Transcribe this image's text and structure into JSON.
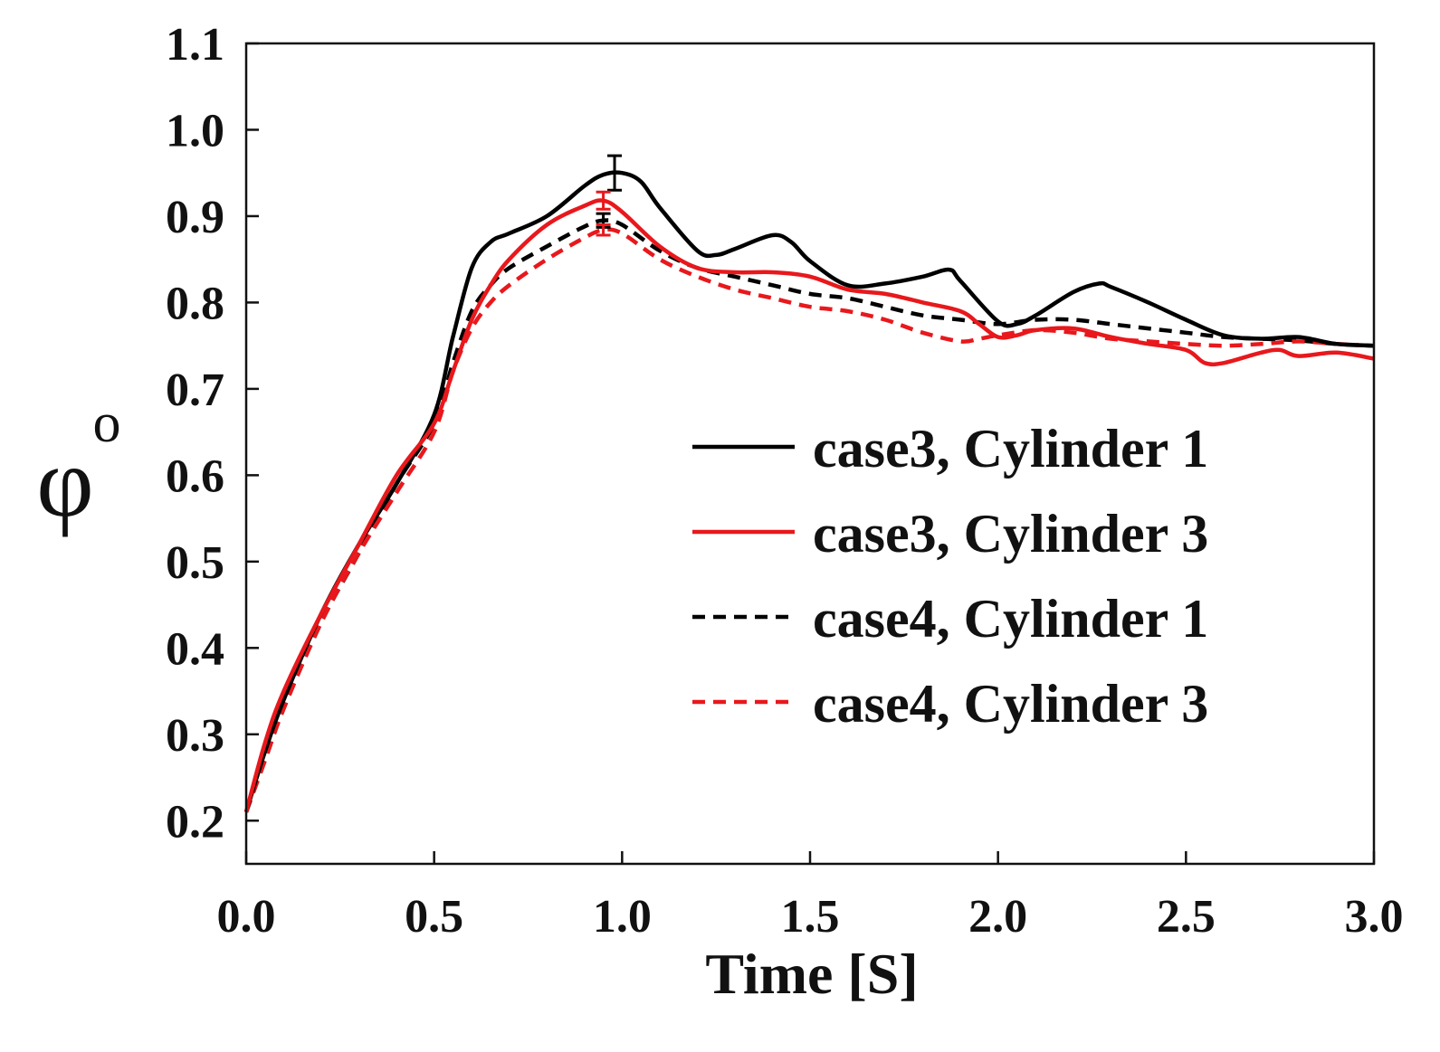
{
  "chart_data": {
    "type": "line",
    "title": "",
    "xlabel": "Time [S]",
    "ylabel_symbol": "φ",
    "ylabel_subscript": "o",
    "xlim": [
      0.0,
      3.0
    ],
    "ylim": [
      0.15,
      1.1
    ],
    "xticks": [
      0.0,
      0.5,
      1.0,
      1.5,
      2.0,
      2.5,
      3.0
    ],
    "xtick_labels": [
      "0.0",
      "0.5",
      "1.0",
      "1.5",
      "2.0",
      "2.5",
      "3.0"
    ],
    "yticks": [
      0.2,
      0.3,
      0.4,
      0.5,
      0.6,
      0.7,
      0.8,
      0.9,
      1.0,
      1.1
    ],
    "ytick_labels": [
      "0.2",
      "0.3",
      "0.4",
      "0.5",
      "0.6",
      "0.7",
      "0.8",
      "0.9",
      "1.0",
      "1.1"
    ],
    "legend_position": "right",
    "series": [
      {
        "name": "case3, Cylinder 1",
        "color": "#000000",
        "dash": "solid",
        "x": [
          0.0,
          0.05,
          0.1,
          0.2,
          0.3,
          0.4,
          0.5,
          0.55,
          0.6,
          0.65,
          0.7,
          0.8,
          0.9,
          0.95,
          1.0,
          1.05,
          1.1,
          1.2,
          1.25,
          1.3,
          1.4,
          1.45,
          1.5,
          1.6,
          1.7,
          1.8,
          1.87,
          1.9,
          2.0,
          2.05,
          2.1,
          2.2,
          2.27,
          2.3,
          2.4,
          2.5,
          2.6,
          2.7,
          2.8,
          2.9,
          3.0
        ],
        "y": [
          0.21,
          0.28,
          0.34,
          0.44,
          0.52,
          0.59,
          0.67,
          0.76,
          0.84,
          0.87,
          0.88,
          0.9,
          0.935,
          0.948,
          0.95,
          0.94,
          0.91,
          0.86,
          0.855,
          0.862,
          0.878,
          0.87,
          0.848,
          0.82,
          0.822,
          0.83,
          0.838,
          0.825,
          0.778,
          0.775,
          0.785,
          0.812,
          0.822,
          0.818,
          0.8,
          0.78,
          0.762,
          0.758,
          0.76,
          0.752,
          0.75
        ]
      },
      {
        "name": "case3, Cylinder 3",
        "color": "#e8181c",
        "dash": "solid",
        "x": [
          0.0,
          0.05,
          0.1,
          0.2,
          0.3,
          0.4,
          0.5,
          0.55,
          0.6,
          0.65,
          0.7,
          0.8,
          0.9,
          0.95,
          1.0,
          1.1,
          1.2,
          1.3,
          1.4,
          1.5,
          1.6,
          1.7,
          1.8,
          1.9,
          1.95,
          2.0,
          2.05,
          2.1,
          2.2,
          2.3,
          2.4,
          2.5,
          2.55,
          2.6,
          2.7,
          2.75,
          2.8,
          2.9,
          3.0
        ],
        "y": [
          0.21,
          0.29,
          0.35,
          0.44,
          0.52,
          0.6,
          0.66,
          0.72,
          0.78,
          0.82,
          0.85,
          0.89,
          0.912,
          0.918,
          0.905,
          0.865,
          0.84,
          0.835,
          0.835,
          0.83,
          0.815,
          0.81,
          0.8,
          0.79,
          0.775,
          0.76,
          0.762,
          0.768,
          0.77,
          0.76,
          0.752,
          0.745,
          0.73,
          0.73,
          0.742,
          0.745,
          0.738,
          0.742,
          0.735
        ]
      },
      {
        "name": "case4, Cylinder 1",
        "color": "#000000",
        "dash": "dashed",
        "x": [
          0.0,
          0.05,
          0.1,
          0.2,
          0.3,
          0.4,
          0.5,
          0.55,
          0.6,
          0.65,
          0.7,
          0.8,
          0.9,
          0.95,
          1.0,
          1.1,
          1.2,
          1.3,
          1.4,
          1.5,
          1.6,
          1.7,
          1.8,
          1.9,
          2.0,
          2.1,
          2.2,
          2.3,
          2.4,
          2.5,
          2.6,
          2.7,
          2.8,
          2.9,
          3.0
        ],
        "y": [
          0.21,
          0.27,
          0.33,
          0.43,
          0.51,
          0.59,
          0.66,
          0.73,
          0.79,
          0.82,
          0.84,
          0.865,
          0.888,
          0.895,
          0.89,
          0.86,
          0.84,
          0.83,
          0.82,
          0.81,
          0.805,
          0.795,
          0.785,
          0.78,
          0.775,
          0.78,
          0.78,
          0.775,
          0.77,
          0.765,
          0.76,
          0.758,
          0.756,
          0.752,
          0.75
        ]
      },
      {
        "name": "case4, Cylinder 3",
        "color": "#e8181c",
        "dash": "dashed",
        "x": [
          0.0,
          0.05,
          0.1,
          0.2,
          0.3,
          0.4,
          0.5,
          0.55,
          0.6,
          0.65,
          0.7,
          0.8,
          0.9,
          0.95,
          1.0,
          1.1,
          1.2,
          1.3,
          1.4,
          1.5,
          1.6,
          1.7,
          1.8,
          1.9,
          1.95,
          2.0,
          2.1,
          2.2,
          2.3,
          2.4,
          2.5,
          2.6,
          2.7,
          2.8,
          2.9,
          3.0
        ],
        "y": [
          0.21,
          0.27,
          0.33,
          0.43,
          0.51,
          0.58,
          0.65,
          0.72,
          0.77,
          0.8,
          0.82,
          0.85,
          0.875,
          0.884,
          0.88,
          0.85,
          0.83,
          0.815,
          0.805,
          0.795,
          0.79,
          0.78,
          0.765,
          0.755,
          0.758,
          0.762,
          0.768,
          0.765,
          0.758,
          0.755,
          0.752,
          0.75,
          0.752,
          0.755,
          0.752,
          0.75
        ]
      }
    ],
    "error_bars": [
      {
        "series": "case3, Cylinder 1",
        "x": 0.98,
        "y": 0.95,
        "err": 0.02
      },
      {
        "series": "case3, Cylinder 3",
        "x": 0.95,
        "y": 0.918,
        "err": 0.01
      },
      {
        "series": "case4, Cylinder 1",
        "x": 0.95,
        "y": 0.895,
        "err": 0.008
      },
      {
        "series": "case4, Cylinder 3",
        "x": 0.95,
        "y": 0.884,
        "err": 0.006
      }
    ]
  }
}
